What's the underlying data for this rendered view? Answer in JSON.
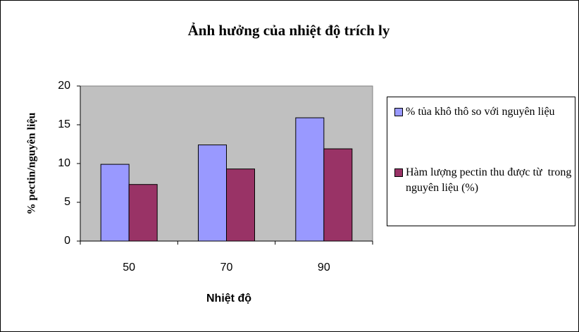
{
  "chart_data": {
    "type": "bar",
    "title": "Ảnh hưởng của nhiệt độ trích ly",
    "x_label": "Nhiệt độ",
    "y_label": "% pectin/nguyên liệu",
    "categories": [
      "50",
      "70",
      "90"
    ],
    "series": [
      {
        "name": "% tủa khô thô so với nguyên liệu",
        "color": "#9999ff",
        "values": [
          9.9,
          12.4,
          15.9
        ]
      },
      {
        "name": "Hàm lượng pectin thu được từ  trong nguyên liệu (%)",
        "color": "#993366",
        "values": [
          7.3,
          9.3,
          11.9
        ]
      }
    ],
    "ylim": [
      0,
      20
    ],
    "yticks": [
      0,
      5,
      10,
      15,
      20
    ],
    "plot_background": "#c0c0c0",
    "legend": "right"
  }
}
